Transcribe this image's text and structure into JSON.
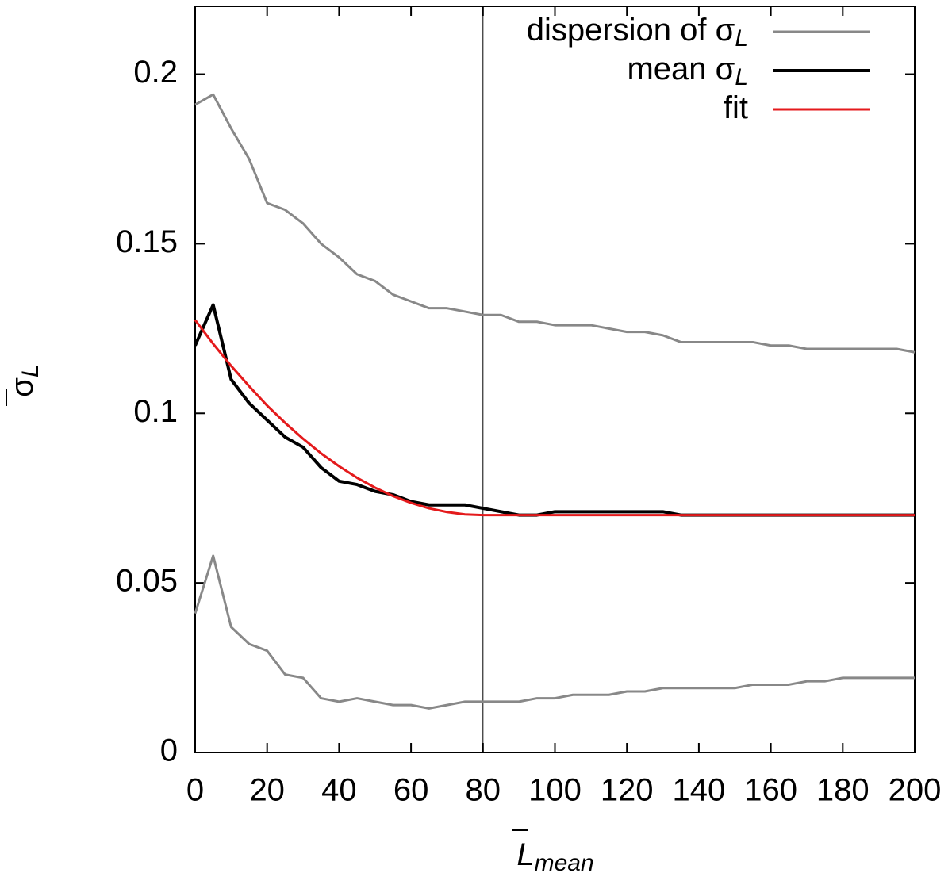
{
  "chart_data": {
    "type": "line",
    "xlabel": "L",
    "xlabel_sub": "mean",
    "ylabel": "σ",
    "ylabel_sub": "L",
    "x": [
      0,
      5,
      10,
      15,
      20,
      25,
      30,
      35,
      40,
      45,
      50,
      55,
      60,
      65,
      70,
      75,
      80,
      85,
      90,
      95,
      100,
      105,
      110,
      115,
      120,
      125,
      130,
      135,
      140,
      145,
      150,
      155,
      160,
      165,
      170,
      175,
      180,
      185,
      190,
      195,
      200
    ],
    "series": [
      {
        "name": "dispersion of σ",
        "name_sub": "L",
        "color": "#888888",
        "width": 3,
        "values": [
          0.191,
          0.194,
          0.184,
          0.175,
          0.162,
          0.16,
          0.156,
          0.15,
          0.146,
          0.141,
          0.139,
          0.135,
          0.133,
          0.131,
          0.131,
          0.13,
          0.129,
          0.129,
          0.127,
          0.127,
          0.126,
          0.126,
          0.126,
          0.125,
          0.124,
          0.124,
          0.123,
          0.121,
          0.121,
          0.121,
          0.121,
          0.121,
          0.12,
          0.12,
          0.119,
          0.119,
          0.119,
          0.119,
          0.119,
          0.119,
          0.118
        ]
      },
      {
        "name": "mean σ",
        "name_sub": "L",
        "color": "#000000",
        "width": 4,
        "values": [
          0.12,
          0.132,
          0.11,
          0.103,
          0.098,
          0.093,
          0.09,
          0.084,
          0.08,
          0.079,
          0.077,
          0.076,
          0.074,
          0.073,
          0.073,
          0.073,
          0.072,
          0.071,
          0.07,
          0.07,
          0.071,
          0.071,
          0.071,
          0.071,
          0.071,
          0.071,
          0.071,
          0.07,
          0.07,
          0.07,
          0.07,
          0.07,
          0.07,
          0.07,
          0.07,
          0.07,
          0.07,
          0.07,
          0.07,
          0.07,
          0.07
        ]
      },
      {
        "name": "fit",
        "color": "#e41a1c",
        "width": 3,
        "values": [
          0.1275,
          0.1205,
          0.114,
          0.108,
          0.1023,
          0.0972,
          0.0925,
          0.0882,
          0.0844,
          0.081,
          0.0781,
          0.0756,
          0.0736,
          0.072,
          0.0709,
          0.0702,
          0.07,
          0.07,
          0.07,
          0.07,
          0.07,
          0.07,
          0.07,
          0.07,
          0.07,
          0.07,
          0.07,
          0.07,
          0.07,
          0.07,
          0.07,
          0.07,
          0.07,
          0.07,
          0.07,
          0.07,
          0.07,
          0.07,
          0.07,
          0.07,
          0.07
        ]
      },
      {
        "color": "#888888",
        "width": 3,
        "values": [
          0.041,
          0.058,
          0.037,
          0.032,
          0.03,
          0.023,
          0.022,
          0.016,
          0.015,
          0.016,
          0.015,
          0.014,
          0.014,
          0.013,
          0.014,
          0.015,
          0.015,
          0.015,
          0.015,
          0.016,
          0.016,
          0.017,
          0.017,
          0.017,
          0.018,
          0.018,
          0.019,
          0.019,
          0.019,
          0.019,
          0.019,
          0.02,
          0.02,
          0.02,
          0.021,
          0.021,
          0.022,
          0.022,
          0.022,
          0.022,
          0.022
        ]
      }
    ],
    "vline": 80,
    "xlim": [
      0,
      200
    ],
    "xticks": [
      0,
      20,
      40,
      60,
      80,
      100,
      120,
      140,
      160,
      180,
      200
    ],
    "ylim": [
      0,
      0.22
    ],
    "yticks": [
      0,
      0.05,
      0.1,
      0.15,
      0.2
    ],
    "legend": "top-right"
  }
}
